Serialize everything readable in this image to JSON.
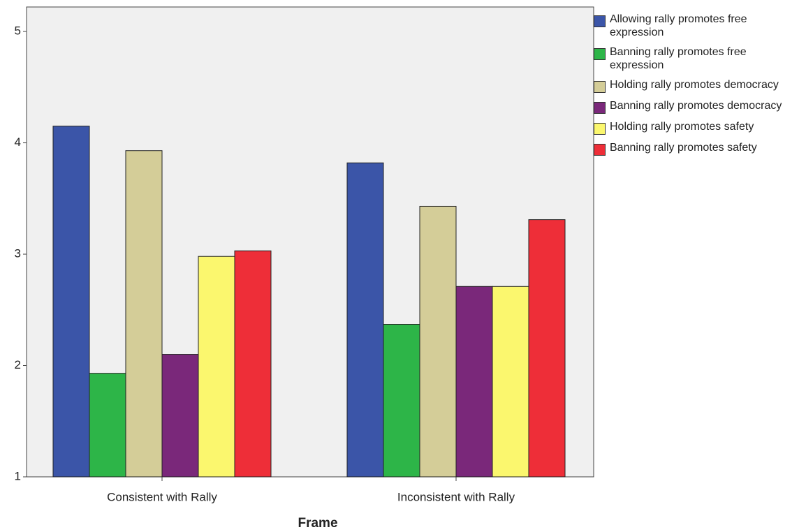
{
  "chart_data": {
    "type": "bar",
    "x_label": "Frame",
    "categories": [
      "Consistent with Rally",
      "Inconsistent with Rally"
    ],
    "series": [
      {
        "name": "Allowing rally promotes free expression",
        "color": "#3b55a8",
        "values": [
          4.15,
          3.82
        ]
      },
      {
        "name": "Banning rally promotes free expression",
        "color": "#2db548",
        "values": [
          1.93,
          2.37
        ]
      },
      {
        "name": "Holding rally promotes democracy",
        "color": "#d4cd98",
        "values": [
          3.93,
          3.43
        ]
      },
      {
        "name": "Banning rally promotes democracy",
        "color": "#7a287a",
        "values": [
          2.1,
          2.71
        ]
      },
      {
        "name": "Holding rally promotes safety",
        "color": "#fbf76e",
        "values": [
          2.98,
          2.71
        ]
      },
      {
        "name": "Banning rally promotes safety",
        "color": "#ee2e38",
        "values": [
          3.03,
          3.31
        ]
      }
    ],
    "ylim": [
      1,
      5.22
    ],
    "yticks": [
      1,
      2,
      3,
      4,
      5
    ],
    "legend": "right"
  }
}
